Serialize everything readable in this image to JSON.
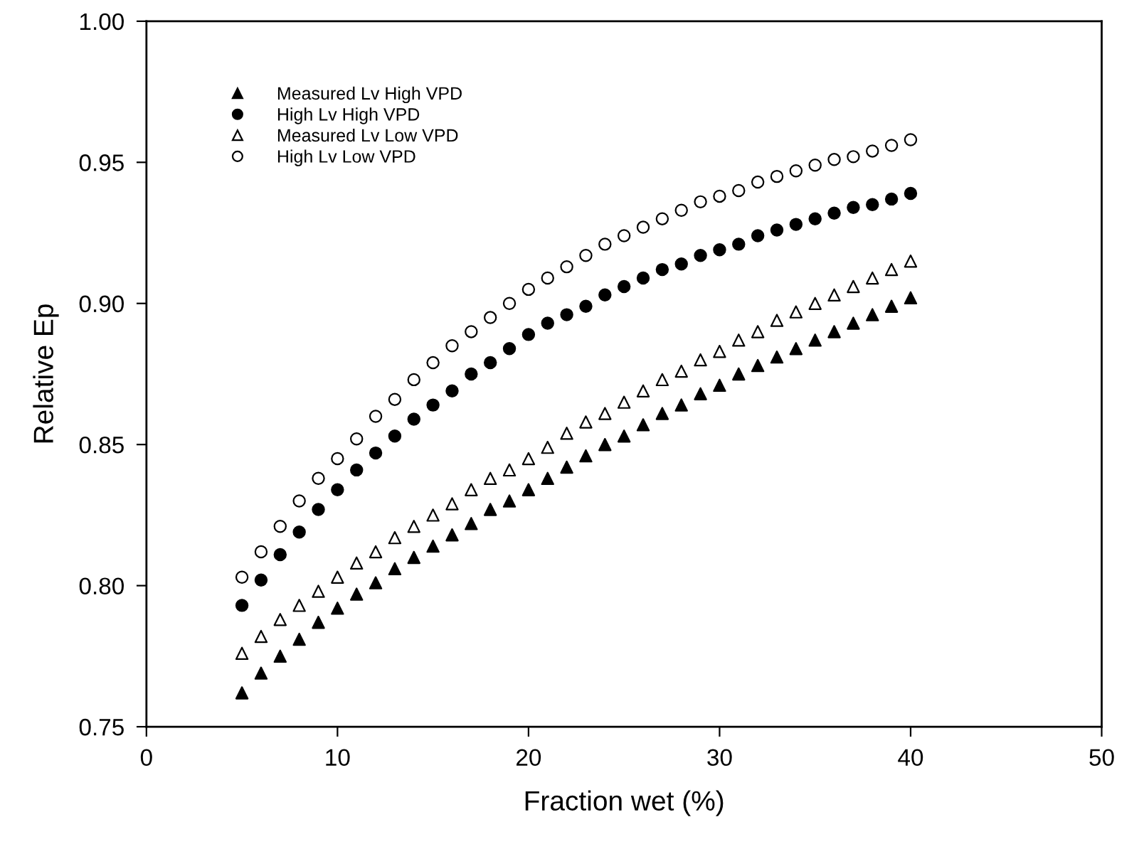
{
  "chart_data": {
    "type": "scatter",
    "xlabel": "Fraction wet (%)",
    "ylabel": "Relative Ep",
    "x": [
      5,
      6,
      7,
      8,
      9,
      10,
      11,
      12,
      13,
      14,
      15,
      16,
      17,
      18,
      19,
      20,
      21,
      22,
      23,
      24,
      25,
      26,
      27,
      28,
      29,
      30,
      31,
      32,
      33,
      34,
      35,
      36,
      37,
      38,
      39,
      40
    ],
    "series": [
      {
        "name": "Measured Lv High VPD",
        "color": "#000000",
        "marker": "triangle",
        "values": [
          0.762,
          0.769,
          0.775,
          0.781,
          0.787,
          0.792,
          0.797,
          0.801,
          0.806,
          0.81,
          0.814,
          0.818,
          0.822,
          0.827,
          0.83,
          0.834,
          0.838,
          0.842,
          0.846,
          0.85,
          0.853,
          0.857,
          0.861,
          0.864,
          0.868,
          0.871,
          0.875,
          0.878,
          0.881,
          0.884,
          0.887,
          0.89,
          0.893,
          0.896,
          0.899,
          0.902
        ]
      },
      {
        "name": "High Lv High VPD",
        "color": "#000000",
        "marker": "circle",
        "values": [
          0.793,
          0.802,
          0.811,
          0.819,
          0.827,
          0.834,
          0.841,
          0.847,
          0.853,
          0.859,
          0.864,
          0.869,
          0.875,
          0.879,
          0.884,
          0.889,
          0.893,
          0.896,
          0.899,
          0.903,
          0.906,
          0.909,
          0.912,
          0.914,
          0.917,
          0.919,
          0.921,
          0.924,
          0.926,
          0.928,
          0.93,
          0.932,
          0.934,
          0.935,
          0.937,
          0.939
        ]
      },
      {
        "name": "Measured Lv Low VPD",
        "color": "#ffffff",
        "marker": "triangle",
        "values": [
          0.776,
          0.782,
          0.788,
          0.793,
          0.798,
          0.803,
          0.808,
          0.812,
          0.817,
          0.821,
          0.825,
          0.829,
          0.834,
          0.838,
          0.841,
          0.845,
          0.849,
          0.854,
          0.858,
          0.861,
          0.865,
          0.869,
          0.873,
          0.876,
          0.88,
          0.883,
          0.887,
          0.89,
          0.894,
          0.897,
          0.9,
          0.903,
          0.906,
          0.909,
          0.912,
          0.915
        ]
      },
      {
        "name": "High Lv Low VPD",
        "color": "#ffffff",
        "marker": "circle",
        "values": [
          0.803,
          0.812,
          0.821,
          0.83,
          0.838,
          0.845,
          0.852,
          0.86,
          0.866,
          0.873,
          0.879,
          0.885,
          0.89,
          0.895,
          0.9,
          0.905,
          0.909,
          0.913,
          0.917,
          0.921,
          0.924,
          0.927,
          0.93,
          0.933,
          0.936,
          0.938,
          0.94,
          0.943,
          0.945,
          0.947,
          0.949,
          0.951,
          0.952,
          0.954,
          0.956,
          0.958
        ]
      }
    ],
    "xlim": [
      0,
      50
    ],
    "xticks": [
      0,
      10,
      20,
      30,
      40,
      50
    ],
    "ylim": [
      0.75,
      1.0
    ],
    "yticks": [
      0.75,
      {
        "value": 0.8,
        "label": "0.80"
      },
      0.85,
      {
        "value": 0.9,
        "label": "0.90"
      },
      0.95,
      {
        "value": 1.0,
        "label": "1.00"
      }
    ],
    "grid": false,
    "legend": "top left"
  }
}
